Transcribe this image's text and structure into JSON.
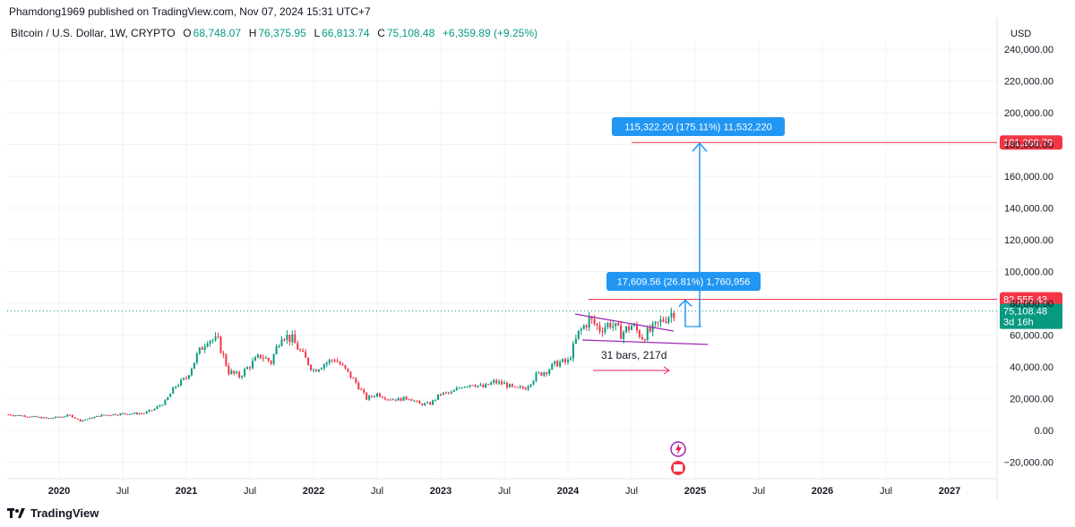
{
  "header": {
    "publisher": "Phamdong1969 published on TradingView.com, Nov 07, 2024 15:31 UTC+7"
  },
  "legend": {
    "symbol": "Bitcoin / U.S. Dollar, 1W, CRYPTO",
    "o_label": "O",
    "o_value": "68,748.07",
    "h_label": "H",
    "h_value": "76,375.95",
    "l_label": "L",
    "l_value": "66,813.74",
    "c_label": "C",
    "c_value": "75,108.48",
    "change": "+6,359.89 (+9.25%)"
  },
  "currency": "USD",
  "footer": {
    "brand": "TradingView"
  },
  "colors": {
    "up": "#089981",
    "down": "#f23645",
    "blue": "#2962ff",
    "measure_blue": "#2196f3",
    "red_line": "#f23645",
    "pink": "#e91e63",
    "purple": "#9c27b0"
  },
  "price_labels": {
    "target": "181,268.79",
    "resistance": "82,555.43",
    "last_price": "75,108.48",
    "countdown": "3d 16h"
  },
  "annotations": {
    "measure_big": "115,322.20 (175.11%) 11,532,220",
    "measure_small": "17,609.56 (26.81%) 1,760,956",
    "range_label": "31 bars, 217d"
  },
  "chart_data": {
    "type": "candlestick",
    "title": "Bitcoin / U.S. Dollar, 1W, CRYPTO",
    "xlabel": "",
    "ylabel": "",
    "ylim": [
      -20000,
      240000
    ],
    "y_ticks": [
      "240,000.00",
      "220,000.00",
      "200,000.00",
      "180,000.00",
      "160,000.00",
      "140,000.00",
      "120,000.00",
      "100,000.00",
      "80,000.00",
      "60,000.00",
      "40,000.00",
      "20,000.00",
      "0.00",
      "−20,000.00"
    ],
    "x_ticks": [
      {
        "label": "2020",
        "year": true
      },
      {
        "label": "Jul",
        "year": false
      },
      {
        "label": "2021",
        "year": true
      },
      {
        "label": "Jul",
        "year": false
      },
      {
        "label": "2022",
        "year": true
      },
      {
        "label": "Jul",
        "year": false
      },
      {
        "label": "2023",
        "year": true
      },
      {
        "label": "Jul",
        "year": false
      },
      {
        "label": "2024",
        "year": true
      },
      {
        "label": "Jul",
        "year": false
      },
      {
        "label": "2025",
        "year": true
      },
      {
        "label": "Jul",
        "year": false
      },
      {
        "label": "2026",
        "year": true
      },
      {
        "label": "Jul",
        "year": false
      },
      {
        "label": "2027",
        "year": true
      }
    ],
    "series": [
      {
        "name": "BTCUSD",
        "x": [
          "2019-08",
          "2019-10",
          "2019-12",
          "2020-02",
          "2020-03",
          "2020-05",
          "2020-07",
          "2020-09",
          "2020-10",
          "2020-11",
          "2020-12",
          "2021-01",
          "2021-02",
          "2021-03",
          "2021-04",
          "2021-05",
          "2021-06",
          "2021-07",
          "2021-08",
          "2021-09",
          "2021-10",
          "2021-11",
          "2021-12",
          "2022-01",
          "2022-02",
          "2022-03",
          "2022-04",
          "2022-05",
          "2022-06",
          "2022-07",
          "2022-08",
          "2022-09",
          "2022-10",
          "2022-11",
          "2022-12",
          "2023-01",
          "2023-02",
          "2023-03",
          "2023-04",
          "2023-05",
          "2023-06",
          "2023-07",
          "2023-08",
          "2023-09",
          "2023-10",
          "2023-11",
          "2023-12",
          "2024-01",
          "2024-02",
          "2024-03",
          "2024-04",
          "2024-05",
          "2024-06",
          "2024-07",
          "2024-08",
          "2024-09",
          "2024-10",
          "2024-11"
        ],
        "values": [
          10000,
          9000,
          7500,
          9500,
          6000,
          9500,
          10500,
          10700,
          13500,
          18000,
          28000,
          33000,
          47000,
          58000,
          56000,
          37000,
          34000,
          41000,
          47000,
          43000,
          61000,
          57000,
          47000,
          38000,
          42000,
          45000,
          38000,
          30000,
          20000,
          23000,
          20000,
          19500,
          20500,
          16500,
          16800,
          23000,
          23500,
          28000,
          29500,
          27000,
          30500,
          29200,
          26000,
          27000,
          34500,
          37800,
          42500,
          43000,
          61000,
          70000,
          64000,
          67500,
          61000,
          66000,
          59000,
          63500,
          70000,
          75108
        ]
      }
    ],
    "levels": [
      {
        "name": "target",
        "value": 181268.79
      },
      {
        "name": "resistance",
        "value": 82555.43
      },
      {
        "name": "last",
        "value": 75108.48
      }
    ],
    "grid": true,
    "legend": "top-left"
  }
}
